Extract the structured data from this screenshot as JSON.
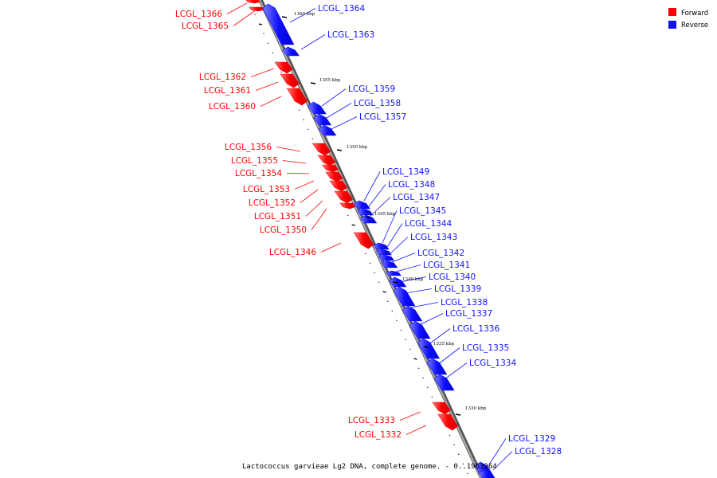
{
  "legend": [
    {
      "label": "Forward",
      "color": "#ff0000"
    },
    {
      "label": "Reverse",
      "color": "#1010ff"
    }
  ],
  "caption": "Lactococcus garvieae Lg2 DNA, complete genome. - 0..1963964",
  "colors": {
    "forward": "#ff0000",
    "reverse": "#1010ff",
    "backbone": "#8a8a8a"
  },
  "ticks": [
    {
      "label": "1360 kbp"
    },
    {
      "label": "1355 kbp"
    },
    {
      "label": "1350 kbp"
    },
    {
      "label": "1345 kbp"
    },
    {
      "label": "1340 kbp"
    },
    {
      "label": "1335 kbp"
    },
    {
      "label": "1330 kbp"
    }
  ],
  "genes": [
    {
      "name": "LCGL_1366",
      "strand": "forward"
    },
    {
      "name": "LCGL_1365",
      "strand": "forward"
    },
    {
      "name": "LCGL_1364",
      "strand": "reverse"
    },
    {
      "name": "LCGL_1363",
      "strand": "reverse"
    },
    {
      "name": "LCGL_1362",
      "strand": "forward"
    },
    {
      "name": "LCGL_1361",
      "strand": "forward"
    },
    {
      "name": "LCGL_1360",
      "strand": "forward"
    },
    {
      "name": "LCGL_1359",
      "strand": "reverse"
    },
    {
      "name": "LCGL_1358",
      "strand": "reverse"
    },
    {
      "name": "LCGL_1357",
      "strand": "reverse"
    },
    {
      "name": "LCGL_1356",
      "strand": "forward"
    },
    {
      "name": "LCGL_1355",
      "strand": "forward"
    },
    {
      "name": "LCGL_1354",
      "strand": "forward"
    },
    {
      "name": "LCGL_1353",
      "strand": "forward"
    },
    {
      "name": "LCGL_1352",
      "strand": "forward"
    },
    {
      "name": "LCGL_1351",
      "strand": "forward"
    },
    {
      "name": "LCGL_1350",
      "strand": "forward"
    },
    {
      "name": "LCGL_1349",
      "strand": "reverse"
    },
    {
      "name": "LCGL_1348",
      "strand": "reverse"
    },
    {
      "name": "LCGL_1347",
      "strand": "reverse"
    },
    {
      "name": "LCGL_1346",
      "strand": "forward"
    },
    {
      "name": "LCGL_1345",
      "strand": "reverse"
    },
    {
      "name": "LCGL_1344",
      "strand": "reverse"
    },
    {
      "name": "LCGL_1343",
      "strand": "reverse"
    },
    {
      "name": "LCGL_1342",
      "strand": "reverse"
    },
    {
      "name": "LCGL_1341",
      "strand": "reverse"
    },
    {
      "name": "LCGL_1340",
      "strand": "reverse"
    },
    {
      "name": "LCGL_1339",
      "strand": "reverse"
    },
    {
      "name": "LCGL_1338",
      "strand": "reverse"
    },
    {
      "name": "LCGL_1337",
      "strand": "reverse"
    },
    {
      "name": "LCGL_1336",
      "strand": "reverse"
    },
    {
      "name": "LCGL_1335",
      "strand": "reverse"
    },
    {
      "name": "LCGL_1334",
      "strand": "reverse"
    },
    {
      "name": "LCGL_1333",
      "strand": "forward"
    },
    {
      "name": "LCGL_1332",
      "strand": "forward"
    },
    {
      "name": "LCGL_1329",
      "strand": "reverse"
    },
    {
      "name": "LCGL_1328",
      "strand": "reverse"
    }
  ]
}
